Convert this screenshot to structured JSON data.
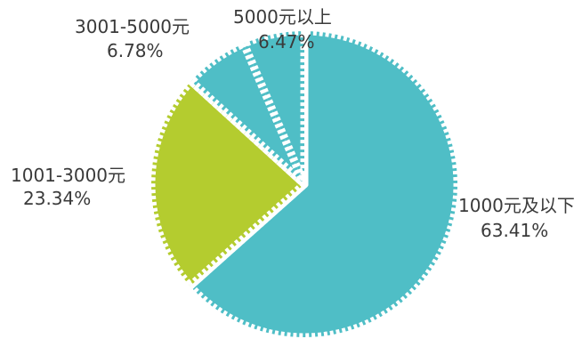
{
  "chart_data": {
    "type": "pie",
    "title": "",
    "slices": [
      {
        "label": "1000元及以下",
        "value": 63.41,
        "percent_label": "63.41%",
        "color": "#4fbec6"
      },
      {
        "label": "1001-3000元",
        "value": 23.34,
        "percent_label": "23.34%",
        "color": "#b4cc2f"
      },
      {
        "label": "3001-5000元",
        "value": 6.78,
        "percent_label": "6.78%",
        "color": "#4fbec6"
      },
      {
        "label": "5000元以上",
        "value": 6.47,
        "percent_label": "6.47%",
        "color": "#4fbec6"
      }
    ],
    "slice_border_color": "#ffffff",
    "label_color": "#3a3a3a",
    "legend": "none"
  }
}
